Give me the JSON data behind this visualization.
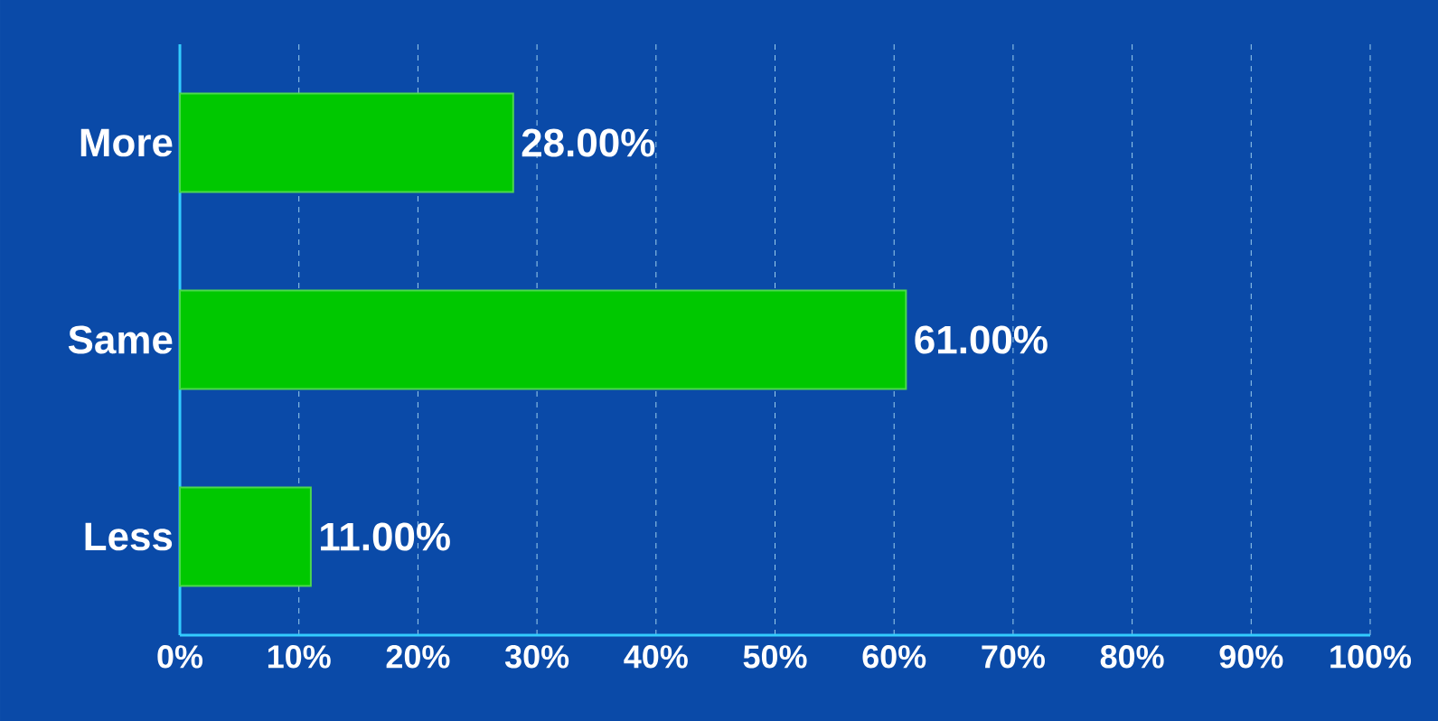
{
  "chart_data": {
    "type": "bar",
    "orientation": "horizontal",
    "categories": [
      "More",
      "Same",
      "Less"
    ],
    "values": [
      28,
      61,
      11
    ],
    "value_labels": [
      "28.00%",
      "61.00%",
      "11.00%"
    ],
    "color": "#00c800",
    "xlim": [
      0,
      100
    ],
    "xticks": [
      {
        "value": 0,
        "label": "0%"
      },
      {
        "value": 10,
        "label": "10%"
      },
      {
        "value": 20,
        "label": "20%"
      },
      {
        "value": 30,
        "label": "30%"
      },
      {
        "value": 40,
        "label": "40%"
      },
      {
        "value": 50,
        "label": "50%"
      },
      {
        "value": 60,
        "label": "60%"
      },
      {
        "value": 70,
        "label": "70%"
      },
      {
        "value": 80,
        "label": "80%"
      },
      {
        "value": 90,
        "label": "90%"
      },
      {
        "value": 100,
        "label": "100%"
      }
    ],
    "grid": "x"
  }
}
